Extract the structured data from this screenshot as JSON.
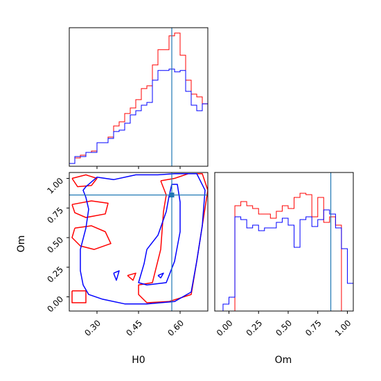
{
  "chart_data": {
    "type": "corner",
    "colors": {
      "series_a": "#ff0000",
      "series_b": "#0000ff",
      "truth": "#1f77b4"
    },
    "truth": {
      "H0": 0.57,
      "Om": 0.86
    },
    "histogram_H0": {
      "edges": [
        0.2,
        0.22,
        0.24,
        0.26,
        0.28,
        0.3,
        0.32,
        0.34,
        0.36,
        0.38,
        0.4,
        0.42,
        0.44,
        0.46,
        0.48,
        0.5,
        0.52,
        0.54,
        0.56,
        0.58,
        0.6,
        0.62,
        0.64,
        0.66,
        0.68,
        0.7
      ],
      "series": [
        {
          "color": "red",
          "values": [
            2,
            6,
            8,
            10,
            11,
            17,
            17,
            21,
            29,
            32,
            38,
            42,
            48,
            56,
            58,
            73,
            84,
            84,
            94,
            96,
            80,
            62,
            52,
            50,
            45
          ]
        },
        {
          "color": "blue",
          "values": [
            2,
            7,
            7,
            10,
            10,
            17,
            17,
            20,
            25,
            26,
            31,
            37,
            40,
            44,
            46,
            62,
            69,
            69,
            70,
            68,
            69,
            54,
            44,
            40,
            45
          ]
        }
      ]
    },
    "histogram_Om": {
      "edges": [
        -0.1,
        -0.05,
        0.0,
        0.05,
        0.1,
        0.15,
        0.2,
        0.25,
        0.3,
        0.35,
        0.4,
        0.45,
        0.5,
        0.55,
        0.6,
        0.65,
        0.7,
        0.75,
        0.8,
        0.85,
        0.9,
        0.95,
        1.0,
        1.05
      ],
      "series": [
        {
          "color": "red",
          "values": [
            0,
            0,
            0,
            0.76,
            0.79,
            0.76,
            0.74,
            0.7,
            0.7,
            0.67,
            0.72,
            0.76,
            0.74,
            0.82,
            0.85,
            0.84,
            0.68,
            0.82,
            0.64,
            0.68,
            0.62,
            0.0,
            0.0
          ]
        },
        {
          "color": "blue",
          "values": [
            0,
            0.05,
            0.1,
            0.68,
            0.66,
            0.6,
            0.62,
            0.58,
            0.6,
            0.6,
            0.64,
            0.67,
            0.62,
            0.46,
            0.66,
            0.68,
            0.61,
            0.66,
            0.73,
            0.7,
            0.6,
            0.45,
            0.2
          ]
        }
      ]
    },
    "contours": {
      "red": [
        [
          [
            0.21,
            1.0
          ],
          [
            0.26,
            1.03
          ],
          [
            0.3,
            1.0
          ],
          [
            0.28,
            0.94
          ],
          [
            0.23,
            0.93
          ],
          [
            0.21,
            1.0
          ]
        ],
        [
          [
            0.21,
            0.78
          ],
          [
            0.28,
            0.81
          ],
          [
            0.34,
            0.79
          ],
          [
            0.33,
            0.7
          ],
          [
            0.26,
            0.67
          ],
          [
            0.22,
            0.71
          ],
          [
            0.21,
            0.78
          ]
        ],
        [
          [
            0.22,
            0.58
          ],
          [
            0.28,
            0.6
          ],
          [
            0.33,
            0.55
          ],
          [
            0.35,
            0.45
          ],
          [
            0.29,
            0.4
          ],
          [
            0.24,
            0.43
          ],
          [
            0.21,
            0.5
          ],
          [
            0.22,
            0.58
          ]
        ],
        [
          [
            0.21,
            0.05
          ],
          [
            0.26,
            0.05
          ],
          [
            0.26,
            -0.05
          ],
          [
            0.21,
            -0.05
          ],
          [
            0.21,
            0.05
          ]
        ],
        [
          [
            0.53,
            0.98
          ],
          [
            0.58,
            1.0
          ],
          [
            0.63,
            1.04
          ],
          [
            0.68,
            1.04
          ],
          [
            0.7,
            0.9
          ],
          [
            0.68,
            0.6
          ],
          [
            0.66,
            0.3
          ],
          [
            0.64,
            0.02
          ],
          [
            0.56,
            -0.04
          ],
          [
            0.48,
            -0.05
          ],
          [
            0.45,
            0.02
          ],
          [
            0.45,
            0.1
          ],
          [
            0.5,
            0.12
          ],
          [
            0.53,
            0.4
          ],
          [
            0.54,
            0.72
          ],
          [
            0.55,
            0.86
          ],
          [
            0.53,
            0.98
          ]
        ],
        [
          [
            0.41,
            0.18
          ],
          [
            0.44,
            0.2
          ],
          [
            0.43,
            0.14
          ],
          [
            0.41,
            0.18
          ]
        ]
      ],
      "blue": [
        [
          [
            0.26,
            0.93
          ],
          [
            0.3,
            1.01
          ],
          [
            0.36,
            0.99
          ],
          [
            0.44,
            1.03
          ],
          [
            0.52,
            1.03
          ],
          [
            0.58,
            1.04
          ],
          [
            0.66,
            1.04
          ],
          [
            0.69,
            0.9
          ],
          [
            0.68,
            0.6
          ],
          [
            0.66,
            0.3
          ],
          [
            0.64,
            0.04
          ],
          [
            0.58,
            -0.04
          ],
          [
            0.48,
            -0.06
          ],
          [
            0.4,
            -0.06
          ],
          [
            0.32,
            -0.02
          ],
          [
            0.27,
            0.02
          ],
          [
            0.25,
            0.1
          ],
          [
            0.24,
            0.22
          ],
          [
            0.24,
            0.4
          ],
          [
            0.26,
            0.58
          ],
          [
            0.27,
            0.74
          ],
          [
            0.26,
            0.84
          ],
          [
            0.25,
            0.9
          ],
          [
            0.26,
            0.93
          ]
        ],
        [
          [
            0.48,
            0.4
          ],
          [
            0.52,
            0.52
          ],
          [
            0.55,
            0.72
          ],
          [
            0.56,
            0.85
          ],
          [
            0.57,
            0.95
          ],
          [
            0.59,
            0.95
          ],
          [
            0.6,
            0.8
          ],
          [
            0.6,
            0.55
          ],
          [
            0.58,
            0.3
          ],
          [
            0.55,
            0.12
          ],
          [
            0.48,
            0.1
          ],
          [
            0.45,
            0.12
          ],
          [
            0.47,
            0.28
          ],
          [
            0.48,
            0.4
          ]
        ],
        [
          [
            0.36,
            0.2
          ],
          [
            0.38,
            0.22
          ],
          [
            0.37,
            0.14
          ],
          [
            0.36,
            0.2
          ]
        ],
        [
          [
            0.52,
            0.18
          ],
          [
            0.54,
            0.2
          ],
          [
            0.53,
            0.16
          ],
          [
            0.52,
            0.18
          ]
        ]
      ]
    },
    "panels": {
      "hist_H0": {
        "xlim": [
          0.2,
          0.7
        ]
      },
      "scatter": {
        "xlim": [
          0.2,
          0.7
        ],
        "ylim": [
          -0.12,
          1.05
        ],
        "xticks": [
          0.3,
          0.45,
          0.6
        ],
        "yticks": [
          0.0,
          0.25,
          0.5,
          0.75,
          1.0
        ]
      },
      "hist_Om": {
        "xlim": [
          -0.12,
          1.05
        ],
        "xticks": [
          0.0,
          0.25,
          0.5,
          0.75,
          1.0
        ]
      }
    },
    "tick_labels": {
      "scatter_x": [
        "0.30",
        "0.45",
        "0.60"
      ],
      "scatter_y": [
        "0.00",
        "0.25",
        "0.50",
        "0.75",
        "1.00"
      ],
      "hist_Om_x": [
        "0.00",
        "0.25",
        "0.50",
        "0.75",
        "1.00"
      ]
    },
    "xlabel_scatter": "H0",
    "ylabel_scatter": "Om",
    "xlabel_hist_Om": "Om"
  }
}
